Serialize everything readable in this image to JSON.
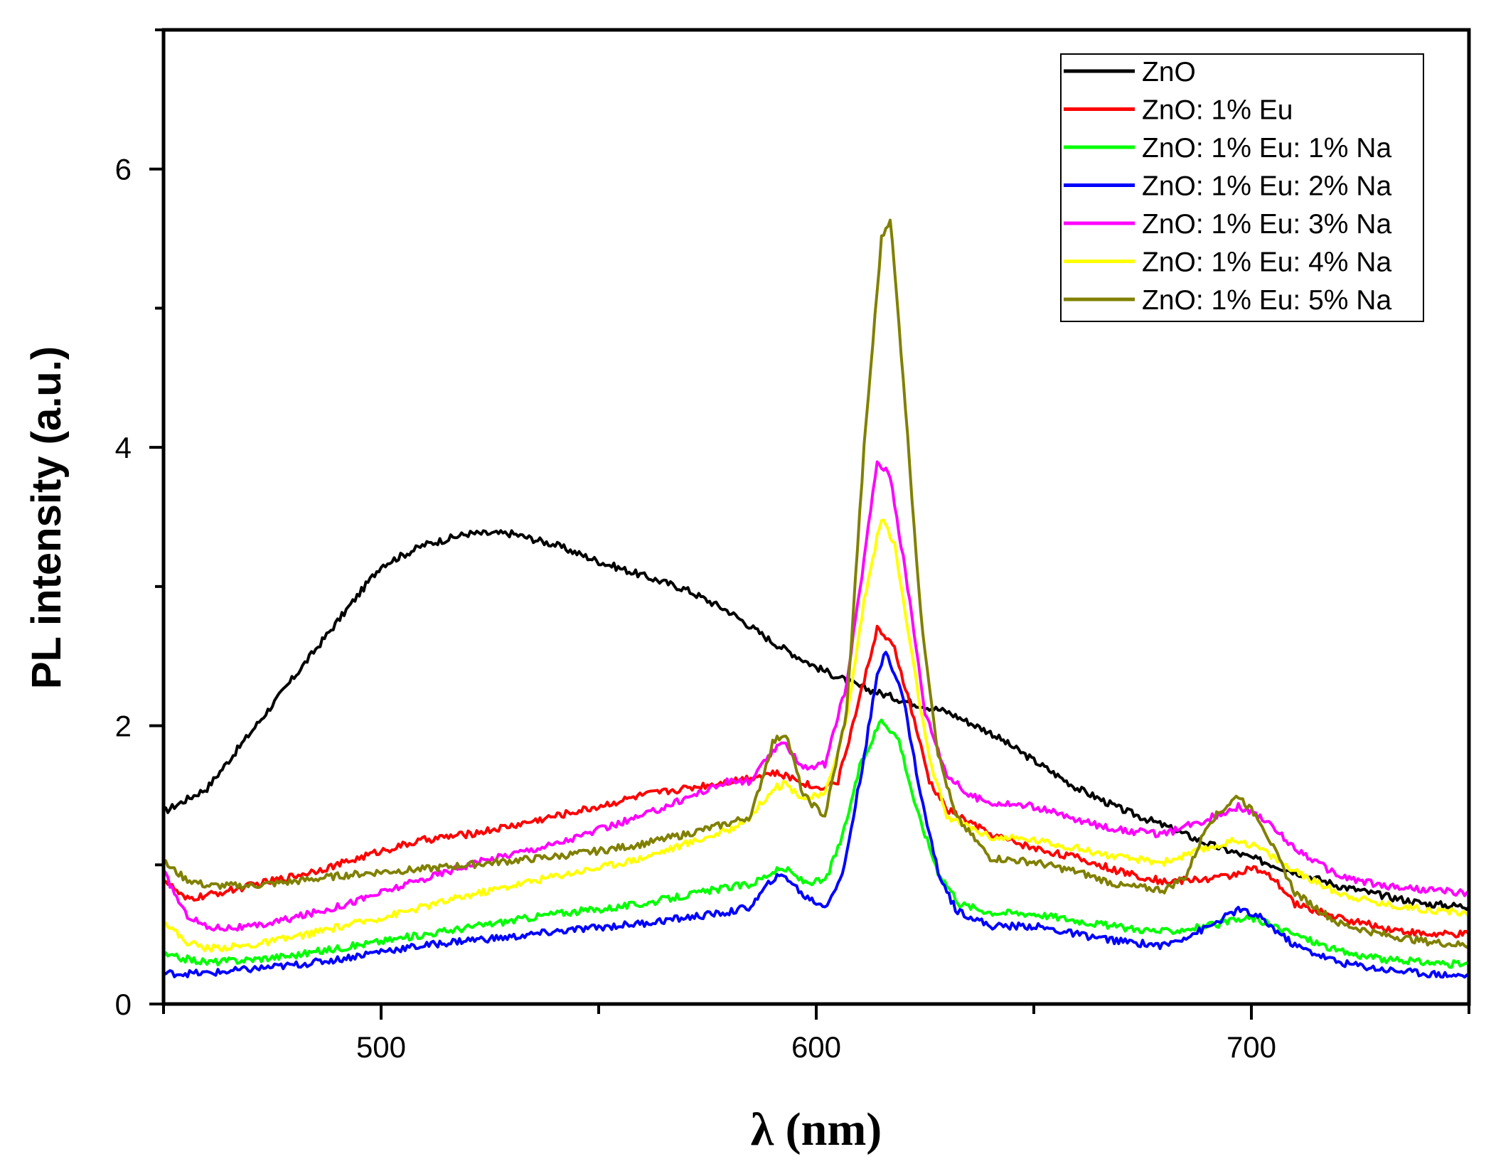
{
  "chart_data": {
    "type": "line",
    "title": "",
    "xlabel": "λ (nm)",
    "ylabel": "PL intensity (a.u.)",
    "xlim": [
      450,
      750
    ],
    "ylim": [
      0,
      7
    ],
    "x_ticks": [
      500,
      600,
      700
    ],
    "x_tick_labels": [
      "500",
      "600",
      "700"
    ],
    "y_ticks": [
      0,
      2,
      4,
      6
    ],
    "y_tick_labels": [
      "0",
      "2",
      "4",
      "6"
    ],
    "grid": false,
    "legend_position": "top-right",
    "series": [
      {
        "name": "ZnO",
        "color": "#000000",
        "points": [
          [
            450,
            1.38
          ],
          [
            460,
            1.55
          ],
          [
            470,
            1.95
          ],
          [
            480,
            2.35
          ],
          [
            490,
            2.75
          ],
          [
            500,
            3.15
          ],
          [
            510,
            3.3
          ],
          [
            520,
            3.38
          ],
          [
            530,
            3.38
          ],
          [
            540,
            3.3
          ],
          [
            550,
            3.18
          ],
          [
            560,
            3.08
          ],
          [
            570,
            2.98
          ],
          [
            580,
            2.82
          ],
          [
            590,
            2.6
          ],
          [
            600,
            2.42
          ],
          [
            610,
            2.28
          ],
          [
            620,
            2.18
          ],
          [
            630,
            2.1
          ],
          [
            640,
            1.95
          ],
          [
            650,
            1.75
          ],
          [
            660,
            1.55
          ],
          [
            670,
            1.4
          ],
          [
            680,
            1.28
          ],
          [
            690,
            1.15
          ],
          [
            700,
            1.05
          ],
          [
            710,
            0.95
          ],
          [
            720,
            0.85
          ],
          [
            730,
            0.78
          ],
          [
            740,
            0.72
          ],
          [
            750,
            0.7
          ]
        ]
      },
      {
        "name": "ZnO: 1% Eu",
        "color": "#ff0000",
        "points": [
          [
            450,
            0.9
          ],
          [
            455,
            0.75
          ],
          [
            460,
            0.78
          ],
          [
            470,
            0.85
          ],
          [
            480,
            0.92
          ],
          [
            490,
            1.0
          ],
          [
            500,
            1.1
          ],
          [
            510,
            1.18
          ],
          [
            520,
            1.22
          ],
          [
            530,
            1.28
          ],
          [
            540,
            1.35
          ],
          [
            550,
            1.42
          ],
          [
            560,
            1.5
          ],
          [
            570,
            1.55
          ],
          [
            580,
            1.6
          ],
          [
            590,
            1.66
          ],
          [
            595,
            1.62
          ],
          [
            600,
            1.55
          ],
          [
            605,
            1.6
          ],
          [
            610,
            2.2
          ],
          [
            614,
            2.7
          ],
          [
            618,
            2.55
          ],
          [
            622,
            2.1
          ],
          [
            626,
            1.6
          ],
          [
            630,
            1.4
          ],
          [
            640,
            1.22
          ],
          [
            650,
            1.12
          ],
          [
            660,
            1.05
          ],
          [
            670,
            0.95
          ],
          [
            680,
            0.88
          ],
          [
            690,
            0.9
          ],
          [
            695,
            0.92
          ],
          [
            700,
            0.98
          ],
          [
            705,
            0.9
          ],
          [
            710,
            0.72
          ],
          [
            720,
            0.62
          ],
          [
            730,
            0.55
          ],
          [
            740,
            0.5
          ],
          [
            750,
            0.5
          ]
        ]
      },
      {
        "name": "ZnO: 1% Eu: 1% Na",
        "color": "#00ff00",
        "points": [
          [
            450,
            0.35
          ],
          [
            460,
            0.3
          ],
          [
            470,
            0.32
          ],
          [
            480,
            0.35
          ],
          [
            490,
            0.4
          ],
          [
            500,
            0.45
          ],
          [
            510,
            0.5
          ],
          [
            520,
            0.55
          ],
          [
            530,
            0.6
          ],
          [
            540,
            0.65
          ],
          [
            550,
            0.68
          ],
          [
            560,
            0.72
          ],
          [
            570,
            0.78
          ],
          [
            580,
            0.84
          ],
          [
            585,
            0.86
          ],
          [
            590,
            0.95
          ],
          [
            593,
            0.97
          ],
          [
            597,
            0.88
          ],
          [
            602,
            0.88
          ],
          [
            606,
            1.2
          ],
          [
            610,
            1.7
          ],
          [
            615,
            2.05
          ],
          [
            619,
            1.9
          ],
          [
            623,
            1.4
          ],
          [
            628,
            0.95
          ],
          [
            633,
            0.72
          ],
          [
            640,
            0.66
          ],
          [
            650,
            0.65
          ],
          [
            660,
            0.6
          ],
          [
            670,
            0.55
          ],
          [
            680,
            0.52
          ],
          [
            690,
            0.56
          ],
          [
            700,
            0.62
          ],
          [
            710,
            0.5
          ],
          [
            720,
            0.38
          ],
          [
            730,
            0.32
          ],
          [
            740,
            0.3
          ],
          [
            750,
            0.28
          ]
        ]
      },
      {
        "name": "ZnO: 1% Eu: 2% Na",
        "color": "#0000ff",
        "points": [
          [
            450,
            0.22
          ],
          [
            460,
            0.22
          ],
          [
            470,
            0.25
          ],
          [
            480,
            0.28
          ],
          [
            490,
            0.32
          ],
          [
            500,
            0.38
          ],
          [
            510,
            0.42
          ],
          [
            520,
            0.46
          ],
          [
            530,
            0.48
          ],
          [
            540,
            0.52
          ],
          [
            550,
            0.55
          ],
          [
            560,
            0.58
          ],
          [
            570,
            0.62
          ],
          [
            580,
            0.66
          ],
          [
            585,
            0.7
          ],
          [
            590,
            0.9
          ],
          [
            593,
            0.92
          ],
          [
            597,
            0.78
          ],
          [
            602,
            0.7
          ],
          [
            606,
            0.92
          ],
          [
            610,
            1.6
          ],
          [
            614,
            2.35
          ],
          [
            616,
            2.55
          ],
          [
            620,
            2.2
          ],
          [
            624,
            1.5
          ],
          [
            628,
            0.95
          ],
          [
            632,
            0.68
          ],
          [
            640,
            0.56
          ],
          [
            650,
            0.56
          ],
          [
            660,
            0.5
          ],
          [
            670,
            0.45
          ],
          [
            680,
            0.42
          ],
          [
            690,
            0.55
          ],
          [
            697,
            0.68
          ],
          [
            702,
            0.62
          ],
          [
            710,
            0.42
          ],
          [
            720,
            0.3
          ],
          [
            730,
            0.25
          ],
          [
            740,
            0.22
          ],
          [
            750,
            0.2
          ]
        ]
      },
      {
        "name": "ZnO: 1% Eu: 3% Na",
        "color": "#ff00ff",
        "points": [
          [
            450,
            0.95
          ],
          [
            455,
            0.65
          ],
          [
            460,
            0.55
          ],
          [
            470,
            0.55
          ],
          [
            480,
            0.62
          ],
          [
            490,
            0.7
          ],
          [
            500,
            0.8
          ],
          [
            510,
            0.9
          ],
          [
            520,
            1.0
          ],
          [
            530,
            1.08
          ],
          [
            540,
            1.15
          ],
          [
            550,
            1.25
          ],
          [
            560,
            1.35
          ],
          [
            570,
            1.48
          ],
          [
            580,
            1.6
          ],
          [
            585,
            1.6
          ],
          [
            590,
            1.82
          ],
          [
            593,
            1.87
          ],
          [
            597,
            1.7
          ],
          [
            602,
            1.72
          ],
          [
            607,
            2.3
          ],
          [
            611,
            3.2
          ],
          [
            614,
            3.9
          ],
          [
            617,
            3.8
          ],
          [
            621,
            3.0
          ],
          [
            625,
            2.1
          ],
          [
            630,
            1.65
          ],
          [
            635,
            1.5
          ],
          [
            640,
            1.45
          ],
          [
            650,
            1.42
          ],
          [
            660,
            1.32
          ],
          [
            670,
            1.25
          ],
          [
            680,
            1.22
          ],
          [
            690,
            1.33
          ],
          [
            697,
            1.42
          ],
          [
            702,
            1.35
          ],
          [
            710,
            1.12
          ],
          [
            720,
            0.92
          ],
          [
            730,
            0.85
          ],
          [
            740,
            0.82
          ],
          [
            750,
            0.8
          ]
        ]
      },
      {
        "name": "ZnO: 1% Eu: 4% Na",
        "color": "#ffff00",
        "points": [
          [
            450,
            0.6
          ],
          [
            455,
            0.45
          ],
          [
            460,
            0.4
          ],
          [
            470,
            0.42
          ],
          [
            480,
            0.48
          ],
          [
            490,
            0.55
          ],
          [
            500,
            0.62
          ],
          [
            510,
            0.7
          ],
          [
            520,
            0.78
          ],
          [
            530,
            0.85
          ],
          [
            540,
            0.92
          ],
          [
            550,
            0.98
          ],
          [
            560,
            1.05
          ],
          [
            570,
            1.15
          ],
          [
            580,
            1.25
          ],
          [
            585,
            1.35
          ],
          [
            590,
            1.55
          ],
          [
            593,
            1.58
          ],
          [
            597,
            1.48
          ],
          [
            602,
            1.5
          ],
          [
            607,
            2.05
          ],
          [
            611,
            2.9
          ],
          [
            615,
            3.5
          ],
          [
            618,
            3.3
          ],
          [
            622,
            2.5
          ],
          [
            626,
            1.75
          ],
          [
            630,
            1.35
          ],
          [
            640,
            1.2
          ],
          [
            650,
            1.18
          ],
          [
            660,
            1.12
          ],
          [
            670,
            1.05
          ],
          [
            680,
            1.02
          ],
          [
            690,
            1.12
          ],
          [
            697,
            1.18
          ],
          [
            702,
            1.12
          ],
          [
            710,
            0.95
          ],
          [
            720,
            0.8
          ],
          [
            730,
            0.72
          ],
          [
            740,
            0.68
          ],
          [
            750,
            0.65
          ]
        ]
      },
      {
        "name": "ZnO: 1% Eu: 5% Na",
        "color": "#808000",
        "points": [
          [
            450,
            1.02
          ],
          [
            455,
            0.9
          ],
          [
            460,
            0.85
          ],
          [
            470,
            0.85
          ],
          [
            480,
            0.88
          ],
          [
            490,
            0.92
          ],
          [
            500,
            0.95
          ],
          [
            510,
            0.97
          ],
          [
            520,
            1.0
          ],
          [
            530,
            1.03
          ],
          [
            540,
            1.06
          ],
          [
            550,
            1.1
          ],
          [
            560,
            1.15
          ],
          [
            570,
            1.22
          ],
          [
            580,
            1.3
          ],
          [
            585,
            1.35
          ],
          [
            590,
            1.88
          ],
          [
            593,
            1.95
          ],
          [
            597,
            1.5
          ],
          [
            602,
            1.35
          ],
          [
            607,
            2.1
          ],
          [
            611,
            4.0
          ],
          [
            615,
            5.5
          ],
          [
            617,
            5.65
          ],
          [
            620,
            4.5
          ],
          [
            624,
            2.8
          ],
          [
            628,
            1.8
          ],
          [
            632,
            1.35
          ],
          [
            640,
            1.05
          ],
          [
            650,
            1.02
          ],
          [
            660,
            0.95
          ],
          [
            670,
            0.85
          ],
          [
            680,
            0.82
          ],
          [
            685,
            0.92
          ],
          [
            690,
            1.3
          ],
          [
            697,
            1.5
          ],
          [
            702,
            1.32
          ],
          [
            710,
            0.8
          ],
          [
            720,
            0.58
          ],
          [
            730,
            0.5
          ],
          [
            740,
            0.45
          ],
          [
            750,
            0.42
          ]
        ]
      }
    ]
  }
}
